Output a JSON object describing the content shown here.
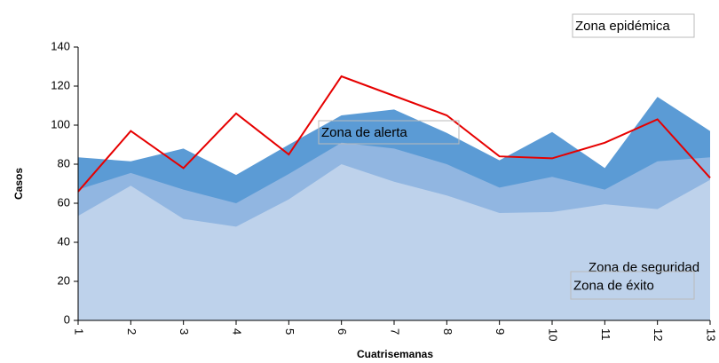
{
  "chart_data": {
    "type": "area",
    "xlabel": "Cuatrisemanas",
    "ylabel": "Casos",
    "annotation": "Zona epidémica",
    "categories": [
      "1",
      "2",
      "3",
      "4",
      "5",
      "6",
      "7",
      "8",
      "9",
      "10",
      "11",
      "12",
      "13"
    ],
    "series": [
      {
        "name": "Zona de alerta",
        "color": "#5b9bd5",
        "values": [
          83.5,
          81.5,
          88,
          74.5,
          90,
          105,
          108,
          96,
          82,
          96.5,
          78,
          114.5,
          97
        ]
      },
      {
        "name": "Zona de seguridad",
        "color": "#91b6e1",
        "values": [
          67,
          75.5,
          67,
          60,
          75,
          91,
          88,
          80,
          68,
          73.5,
          67,
          81.5,
          83.5
        ]
      },
      {
        "name": "Zona de éxito",
        "color": "#bed2eb",
        "values": [
          53.5,
          69,
          52,
          48,
          62,
          80,
          71,
          64,
          55,
          55.5,
          59.5,
          57,
          72
        ]
      },
      {
        "type": "line",
        "color": "#e60000",
        "values": [
          66,
          97,
          78,
          106,
          85,
          125,
          115,
          105,
          84,
          83,
          91,
          103,
          73
        ]
      }
    ],
    "ylim": [
      0,
      140
    ],
    "yticks": [
      0,
      20,
      40,
      60,
      80,
      100,
      120,
      140
    ]
  }
}
